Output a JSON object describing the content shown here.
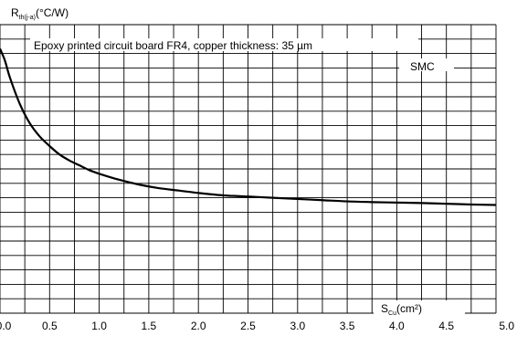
{
  "chart_data": {
    "type": "line",
    "title": "",
    "ylabel": {
      "main": "R",
      "sub": "th(j-a)",
      "unit": "(°C/W)"
    },
    "xlabel": {
      "main": "S",
      "sub": "Cu",
      "unit": "(cm²)"
    },
    "annotation": "Epoxy printed circuit board FR4, copper thickness: 35 µm",
    "legend_label": "SMC",
    "xlim": [
      0,
      5
    ],
    "ylim": [
      0,
      120
    ],
    "grid": true,
    "x_ticks": [
      "0.0",
      "0.5",
      "1.0",
      "1.5",
      "2.0",
      "2.5",
      "3.0",
      "3.5",
      "4.0",
      "4.5",
      "5.0"
    ],
    "series": [
      {
        "name": "SMC",
        "x": [
          0.0,
          0.05,
          0.1,
          0.2,
          0.3,
          0.4,
          0.5,
          0.6,
          0.7,
          0.8,
          0.9,
          1.0,
          1.2,
          1.4,
          1.6,
          1.8,
          2.0,
          2.25,
          2.5,
          2.75,
          3.0,
          3.25,
          3.5,
          3.75,
          4.0,
          4.25,
          4.5,
          4.75,
          5.0
        ],
        "y": [
          110,
          105,
          98,
          87,
          79,
          73.5,
          69.5,
          66,
          63.5,
          61.5,
          59.5,
          58,
          55.5,
          53.5,
          52,
          51,
          50,
          49,
          48.5,
          48,
          47.5,
          47,
          46.5,
          46.2,
          46,
          45.8,
          45.5,
          45.2,
          45
        ]
      }
    ]
  }
}
